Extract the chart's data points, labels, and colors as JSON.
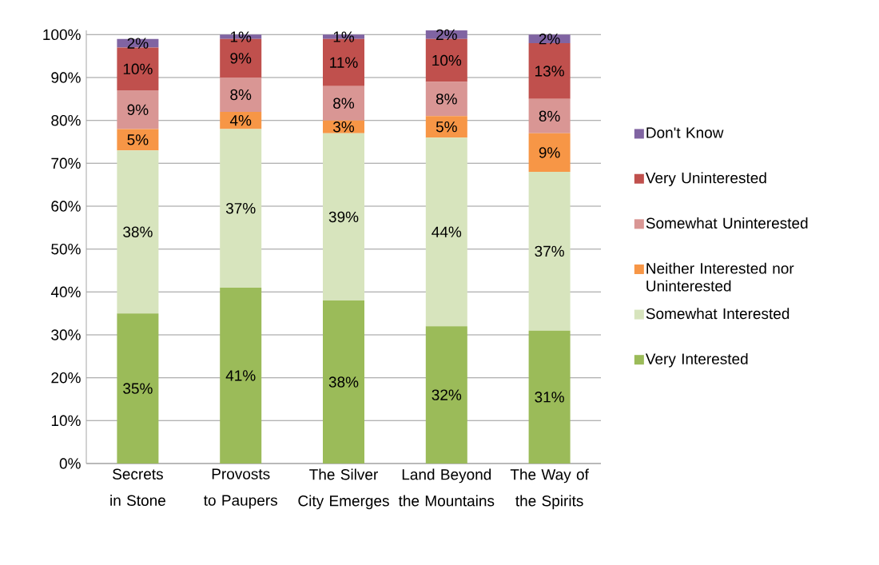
{
  "chart_data": {
    "type": "bar",
    "stacked": true,
    "categories": [
      "Secrets in Stone",
      "Provosts to Paupers",
      "The Silver City Emerges",
      "Land Beyond the Mountains",
      "The Way of the Spirits"
    ],
    "series": [
      {
        "name": "Very Interested",
        "color": "#9bbb59",
        "values": [
          35,
          41,
          38,
          32,
          31
        ],
        "value_labels": [
          "35%",
          "41%",
          "38%",
          "32%",
          "31%"
        ]
      },
      {
        "name": "Somewhat Interested",
        "color": "#d7e4bd",
        "values": [
          38,
          37,
          39,
          44,
          37
        ],
        "value_labels": [
          "38%",
          "37%",
          "39%",
          "44%",
          "37%"
        ]
      },
      {
        "name": "Neither Interested nor Uninterested",
        "color": "#f79646",
        "values": [
          5,
          4,
          3,
          5,
          9
        ],
        "value_labels": [
          "5%",
          "4%",
          "3%",
          "5%",
          "9%"
        ]
      },
      {
        "name": "Somewhat Uninterested",
        "color": "#d99694",
        "values": [
          9,
          8,
          8,
          8,
          8
        ],
        "value_labels": [
          "9%",
          "8%",
          "8%",
          "8%",
          "8%"
        ]
      },
      {
        "name": "Very Uninterested",
        "color": "#c0504d",
        "values": [
          10,
          9,
          11,
          10,
          13
        ],
        "value_labels": [
          "10%",
          "9%",
          "11%",
          "10%",
          "13%"
        ]
      },
      {
        "name": "Don't Know",
        "color": "#8064a2",
        "values": [
          2,
          1,
          1,
          2,
          2
        ],
        "value_labels": [
          "2%",
          "1%",
          "1%",
          "2%",
          "2%"
        ]
      }
    ],
    "ylim": [
      0,
      101
    ],
    "yticks": [
      {
        "value": 0,
        "label": "0%"
      },
      {
        "value": 10,
        "label": "10%"
      },
      {
        "value": 20,
        "label": "20%"
      },
      {
        "value": 30,
        "label": "30%"
      },
      {
        "value": 40,
        "label": "40%"
      },
      {
        "value": 50,
        "label": "50%"
      },
      {
        "value": 60,
        "label": "60%"
      },
      {
        "value": 70,
        "label": "70%"
      },
      {
        "value": 80,
        "label": "80%"
      },
      {
        "value": 90,
        "label": "90%"
      },
      {
        "value": 100,
        "label": "100%"
      }
    ],
    "grid": "y",
    "legend": "right"
  }
}
